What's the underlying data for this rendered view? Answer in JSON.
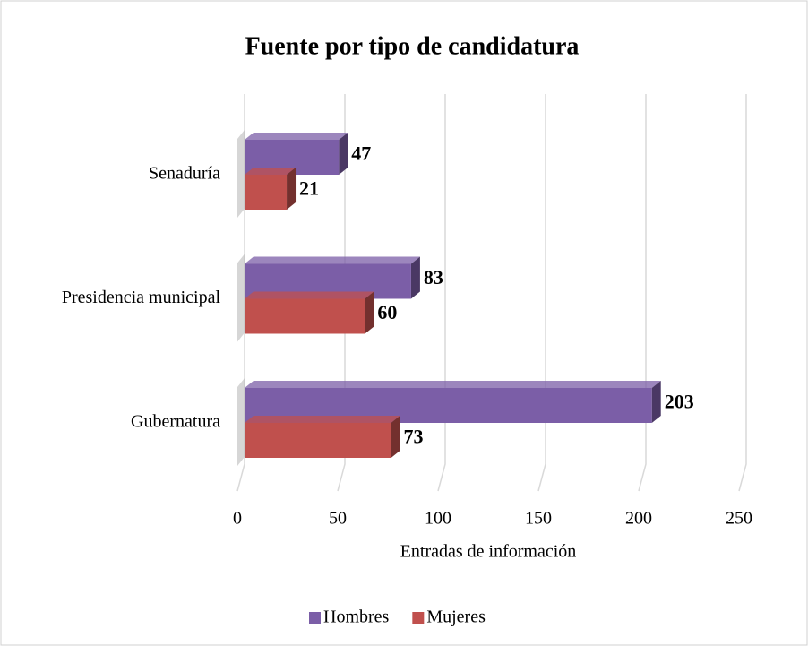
{
  "chart_data": {
    "type": "bar3d",
    "title": "Fuente por tipo de candidatura",
    "x_label": "Entradas de información",
    "categories": [
      "Senaduría",
      "Presidencia municipal",
      "Gubernatura"
    ],
    "series": [
      {
        "name": "Hombres",
        "color": "#7b5ea7",
        "values": [
          47,
          83,
          203
        ]
      },
      {
        "name": "Mujeres",
        "color": "#c0504d",
        "values": [
          21,
          60,
          73
        ]
      }
    ],
    "xlim": [
      0,
      250
    ],
    "xticks": [
      0,
      50,
      100,
      150,
      200,
      250
    ],
    "grid": true,
    "legend": "bottom"
  }
}
